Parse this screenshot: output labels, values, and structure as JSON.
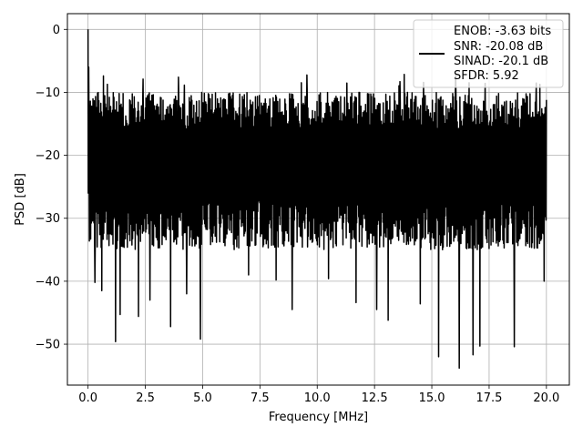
{
  "chart_data": {
    "type": "line",
    "title": "",
    "xlabel": "Frequency [MHz]",
    "ylabel": "PSD [dB]",
    "xlim": [
      -0.9,
      21.0
    ],
    "ylim": [
      -56.5,
      2.5
    ],
    "x_ticks": [
      0.0,
      2.5,
      5.0,
      7.5,
      10.0,
      12.5,
      15.0,
      17.5,
      20.0
    ],
    "x_tick_labels": [
      "0.0",
      "2.5",
      "5.0",
      "7.5",
      "10.0",
      "12.5",
      "15.0",
      "17.5",
      "20.0"
    ],
    "y_ticks": [
      0,
      -10,
      -20,
      -30,
      -40,
      -50
    ],
    "y_tick_labels": [
      "0",
      "−10",
      "−20",
      "−30",
      "−40",
      "−50"
    ],
    "grid": true,
    "legend_position": "top-right",
    "series": [
      {
        "name": "ENOB: -3.63 bits\nSNR: -20.08 dB\nSINAD: -20.1 dB\nSFDR: 5.92",
        "color": "#000000",
        "x_range": [
          0.0,
          20.0
        ],
        "dc_peak": 0.0,
        "noise_floor_band": [
          -25,
          -12
        ],
        "max_spur": -7.0,
        "min_values": [
          [
            0.3,
            -40.2
          ],
          [
            0.6,
            -41.5
          ],
          [
            1.2,
            -49.6
          ],
          [
            1.4,
            -45.3
          ],
          [
            2.2,
            -45.6
          ],
          [
            2.7,
            -43.0
          ],
          [
            3.6,
            -47.2
          ],
          [
            4.3,
            -42.0
          ],
          [
            4.9,
            -49.2
          ],
          [
            7.0,
            -39.0
          ],
          [
            8.2,
            -39.8
          ],
          [
            8.9,
            -44.5
          ],
          [
            10.5,
            -39.6
          ],
          [
            11.7,
            -43.4
          ],
          [
            12.6,
            -44.5
          ],
          [
            13.1,
            -46.2
          ],
          [
            14.5,
            -43.6
          ],
          [
            15.3,
            -52.0
          ],
          [
            16.2,
            -53.8
          ],
          [
            16.8,
            -51.7
          ],
          [
            17.1,
            -50.3
          ],
          [
            18.6,
            -50.4
          ],
          [
            19.9,
            -40.0
          ]
        ]
      }
    ],
    "legend_lines": [
      "ENOB: -3.63 bits",
      "SNR: -20.08 dB",
      "SINAD: -20.1 dB",
      "SFDR: 5.92"
    ]
  }
}
